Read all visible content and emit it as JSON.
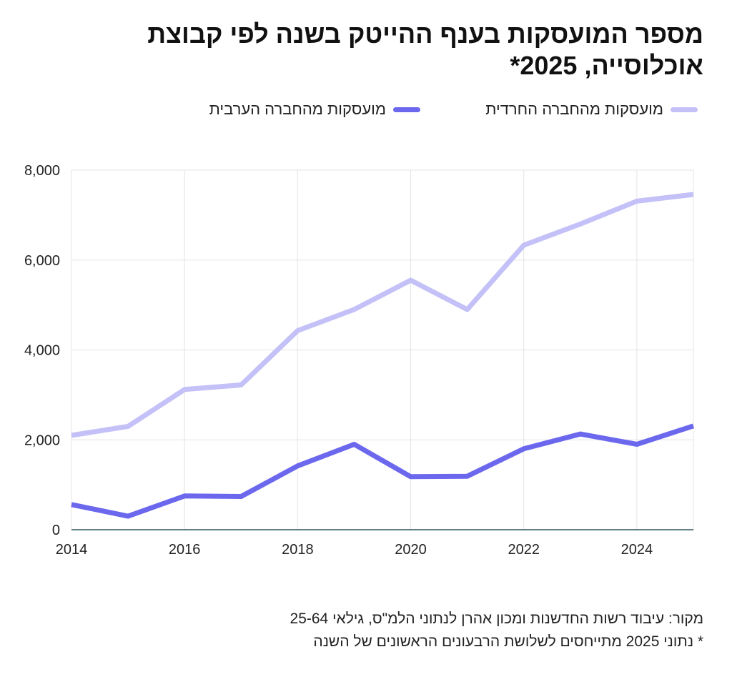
{
  "title": "מספר המועסקות בענף ההייטק בשנה לפי קבוצת אוכלוסייה, 2025*",
  "chart_data": {
    "type": "line",
    "x": [
      2014,
      2015,
      2016,
      2017,
      2018,
      2019,
      2020,
      2021,
      2022,
      2023,
      2024,
      2025
    ],
    "series": [
      {
        "name": "מועסקות מהחברה החרדית",
        "color": "#c3c1f7",
        "values": [
          2100,
          2300,
          3120,
          3220,
          4430,
          4900,
          5550,
          4900,
          6330,
          6800,
          7310,
          7460
        ]
      },
      {
        "name": "מועסקות מהחברה הערבית",
        "color": "#6c68ee",
        "values": [
          560,
          300,
          750,
          740,
          1420,
          1900,
          1180,
          1190,
          1800,
          2130,
          1900,
          2310
        ]
      }
    ],
    "xticks": [
      2014,
      2016,
      2018,
      2020,
      2022,
      2024
    ],
    "xtick_labels": [
      "2014",
      "2016",
      "2018",
      "2020",
      "2022",
      "2024"
    ],
    "yticks": [
      0,
      2000,
      4000,
      6000,
      8000
    ],
    "ytick_labels": [
      "0",
      "2,000",
      "4,000",
      "6,000",
      "8,000"
    ],
    "xlim": [
      2014,
      2025
    ],
    "ylim": [
      0,
      8000
    ],
    "xlabel": "",
    "ylabel": "",
    "grid": true,
    "legend_position": "top"
  },
  "notes": {
    "source": "מקור: עיבוד רשות החדשנות ומכון אהרן לנתוני הלמ\"ס, גילאי 25-64",
    "footnote": "* נתוני 2025 מתייחסים לשלושת הרבעונים הראשונים של השנה"
  }
}
